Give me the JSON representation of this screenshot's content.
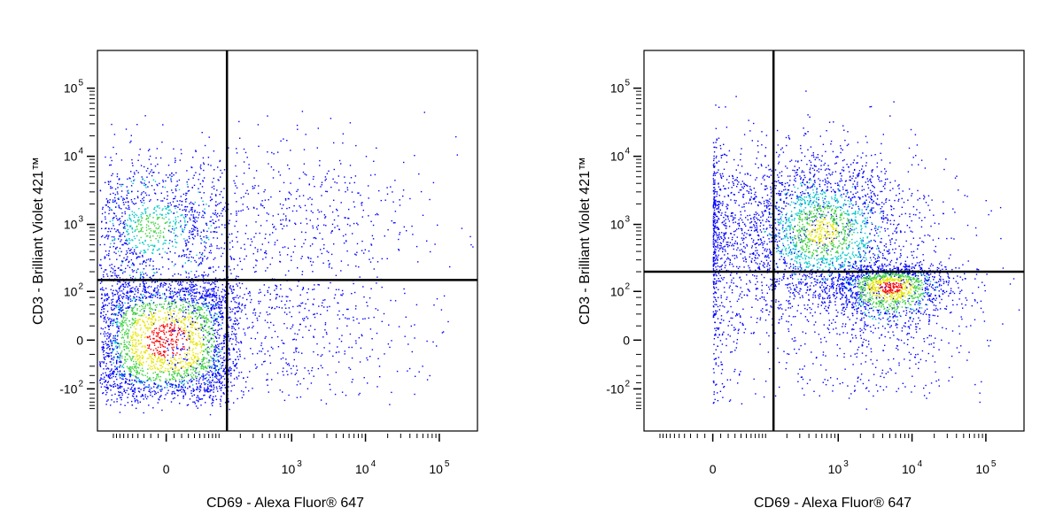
{
  "colors": {
    "background": "#ffffff",
    "axis": "#000000",
    "gate": "#000000",
    "density_low": "#0000ff",
    "density_mid": "#00c8c8",
    "density_midhigh": "#3fd23f",
    "density_high": "#e6e600",
    "density_peak": "#ff0000"
  },
  "chart_data": [
    {
      "type": "scatter",
      "plot_style": "flow cytometry density dot plot",
      "xlabel": "CD69 - Alexa Fluor® 647",
      "ylabel": "CD3 - Brilliant Violet 421™",
      "x_scale": "biexponential",
      "y_scale": "biexponential",
      "xlim": [
        -100,
        200000
      ],
      "ylim": [
        -300,
        250000
      ],
      "x_ticks": [
        {
          "value": 0,
          "base": "0",
          "exp": ""
        },
        {
          "value": 1000,
          "base": "10",
          "exp": "3"
        },
        {
          "value": 10000,
          "base": "10",
          "exp": "4"
        },
        {
          "value": 100000,
          "base": "10",
          "exp": "5"
        }
      ],
      "y_ticks": [
        {
          "value": -100,
          "base": "-10",
          "exp": "2"
        },
        {
          "value": 0,
          "base": "0",
          "exp": ""
        },
        {
          "value": 100,
          "base": "10",
          "exp": "2"
        },
        {
          "value": 1000,
          "base": "10",
          "exp": "3"
        },
        {
          "value": 10000,
          "base": "10",
          "exp": "4"
        },
        {
          "value": 100000,
          "base": "10",
          "exp": "5"
        }
      ],
      "gates": {
        "x": 130,
        "y": 150
      },
      "populations": [
        {
          "x_center": -20,
          "y_center": 900,
          "x_spread": 70,
          "y_spread": 0.55,
          "weight": 0.22,
          "peak_color": "density_midhigh"
        },
        {
          "x_center": 0,
          "y_center": 0,
          "x_spread": 80,
          "y_spread": 70,
          "weight": 0.55,
          "peak_color": "density_peak"
        },
        {
          "x_center": 600,
          "y_center": 1100,
          "x_spread": 1.0,
          "y_spread": 0.6,
          "weight": 0.12,
          "peak_color": "density_low"
        },
        {
          "x_center": 500,
          "y_center": 10,
          "x_spread": 1.0,
          "y_spread": 60,
          "weight": 0.11,
          "peak_color": "density_low"
        }
      ],
      "grid": false,
      "legend": "none"
    },
    {
      "type": "scatter",
      "plot_style": "flow cytometry density dot plot",
      "xlabel": "CD69 - Alexa Fluor® 647",
      "ylabel": "CD3 - Brilliant Violet 421™",
      "x_scale": "biexponential",
      "y_scale": "biexponential",
      "xlim": [
        -100,
        200000
      ],
      "ylim": [
        -300,
        250000
      ],
      "x_ticks": [
        {
          "value": 0,
          "base": "0",
          "exp": ""
        },
        {
          "value": 1000,
          "base": "10",
          "exp": "3"
        },
        {
          "value": 10000,
          "base": "10",
          "exp": "4"
        },
        {
          "value": 100000,
          "base": "10",
          "exp": "5"
        }
      ],
      "y_ticks": [
        {
          "value": -100,
          "base": "-10",
          "exp": "2"
        },
        {
          "value": 0,
          "base": "0",
          "exp": ""
        },
        {
          "value": 100,
          "base": "10",
          "exp": "2"
        },
        {
          "value": 1000,
          "base": "10",
          "exp": "3"
        },
        {
          "value": 10000,
          "base": "10",
          "exp": "4"
        },
        {
          "value": 100000,
          "base": "10",
          "exp": "5"
        }
      ],
      "gates": {
        "x": 130,
        "y": 200
      },
      "populations": [
        {
          "x_center": 60,
          "y_center": 1000,
          "x_spread": 1.3,
          "y_spread": 0.6,
          "weight": 0.2,
          "peak_color": "density_low"
        },
        {
          "x_center": 600,
          "y_center": 800,
          "x_spread": 0.6,
          "y_spread": 0.55,
          "weight": 0.4,
          "peak_color": "density_high"
        },
        {
          "x_center": 5000,
          "y_center": 120,
          "x_spread": 0.45,
          "y_spread": 70,
          "weight": 0.3,
          "peak_color": "density_peak"
        },
        {
          "x_center": 300,
          "y_center": 20,
          "x_spread": 1.4,
          "y_spread": 80,
          "weight": 0.1,
          "peak_color": "density_low"
        }
      ],
      "grid": false,
      "legend": "none"
    }
  ]
}
